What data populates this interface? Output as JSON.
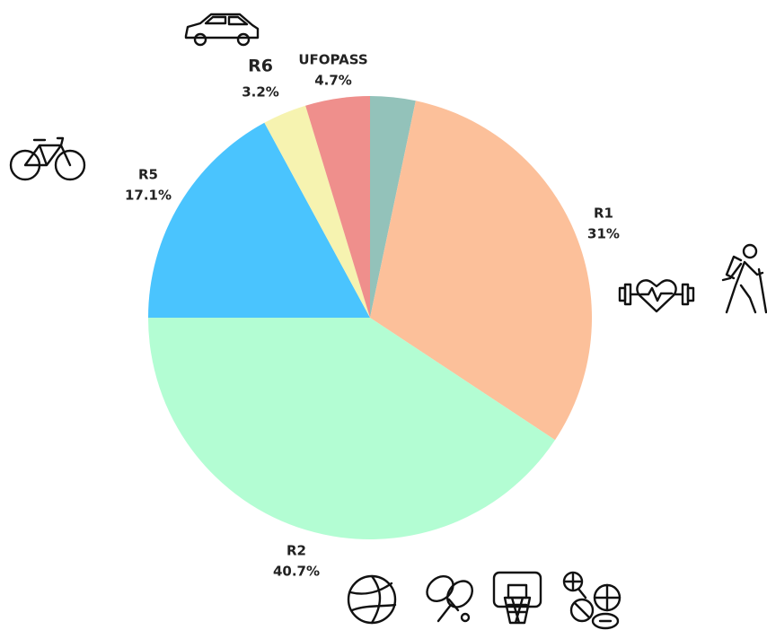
{
  "chart_data": {
    "type": "pie",
    "categories": [
      null,
      "R1",
      "R2",
      "R5",
      "R6",
      "UFOPASS"
    ],
    "values": [
      3.3,
      31,
      40.7,
      17.1,
      3.2,
      4.7
    ],
    "value_labels": [
      null,
      "31%",
      "40.7%",
      "17.1%",
      "3.2%",
      "4.7%"
    ],
    "colors": [
      "#93c2ba",
      "#fcc09a",
      "#b3fdd3",
      "#4ac4fe",
      "#f6f3b0",
      "#ef8f8c"
    ]
  }
}
